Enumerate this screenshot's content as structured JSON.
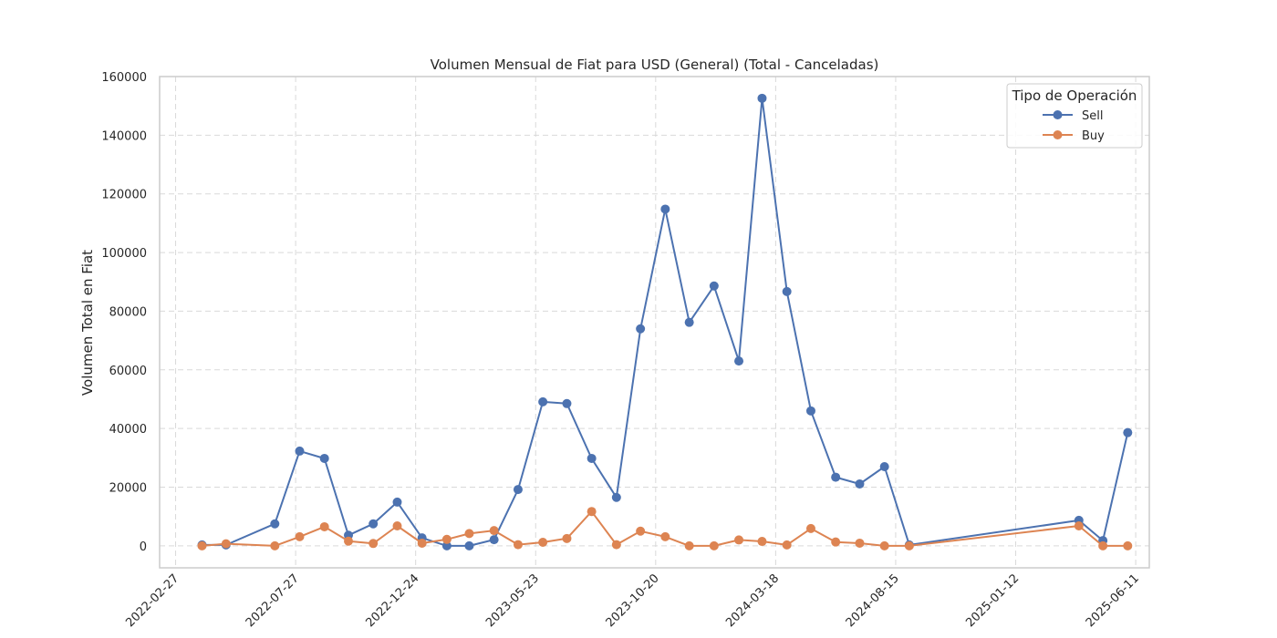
{
  "chart_data": {
    "type": "line",
    "title": "Volumen Mensual de Fiat para USD (General) (Total - Canceladas)",
    "xlabel": "",
    "ylabel": "Volumen Total en Fiat",
    "x_type": "date",
    "xlim": [
      "2022-02-07",
      "2025-06-28"
    ],
    "ylim": [
      -7500,
      160000
    ],
    "y_ticks": [
      0,
      20000,
      40000,
      60000,
      80000,
      100000,
      120000,
      140000,
      160000
    ],
    "x_ticks": [
      "2022-02-27",
      "2022-07-27",
      "2022-12-24",
      "2023-05-23",
      "2023-10-20",
      "2024-03-18",
      "2024-08-15",
      "2025-01-12",
      "2025-06-11"
    ],
    "grid": true,
    "legend": {
      "title": "Tipo de Operación",
      "placement": "top-right"
    },
    "x": [
      "2022-04-01",
      "2022-05-01",
      "2022-07-01",
      "2022-08-01",
      "2022-09-01",
      "2022-10-01",
      "2022-11-01",
      "2022-12-01",
      "2023-01-01",
      "2023-02-01",
      "2023-03-01",
      "2023-04-01",
      "2023-05-01",
      "2023-06-01",
      "2023-07-01",
      "2023-08-01",
      "2023-09-01",
      "2023-10-01",
      "2023-11-01",
      "2023-12-01",
      "2024-01-01",
      "2024-02-01",
      "2024-03-01",
      "2024-04-01",
      "2024-05-01",
      "2024-06-01",
      "2024-07-01",
      "2024-08-01",
      "2024-09-01",
      "2025-04-01",
      "2025-05-01",
      "2025-06-01"
    ],
    "series": [
      {
        "name": "Sell",
        "color": "#4c72b0",
        "values": [
          300,
          300,
          7500,
          32300,
          29800,
          3600,
          7500,
          14900,
          2700,
          0,
          0,
          2100,
          19200,
          49100,
          48500,
          29800,
          16500,
          74000,
          114800,
          76200,
          88600,
          63000,
          152600,
          86700,
          46000,
          23400,
          21100,
          27000,
          300,
          8700,
          1800,
          38600
        ]
      },
      {
        "name": "Buy",
        "color": "#dd8452",
        "values": [
          0,
          700,
          0,
          3100,
          6500,
          1600,
          800,
          6800,
          900,
          2200,
          4200,
          5200,
          400,
          1200,
          2500,
          11700,
          400,
          5000,
          3100,
          0,
          0,
          2000,
          1500,
          300,
          5900,
          1300,
          900,
          0,
          0,
          6800,
          0,
          0
        ]
      }
    ]
  }
}
